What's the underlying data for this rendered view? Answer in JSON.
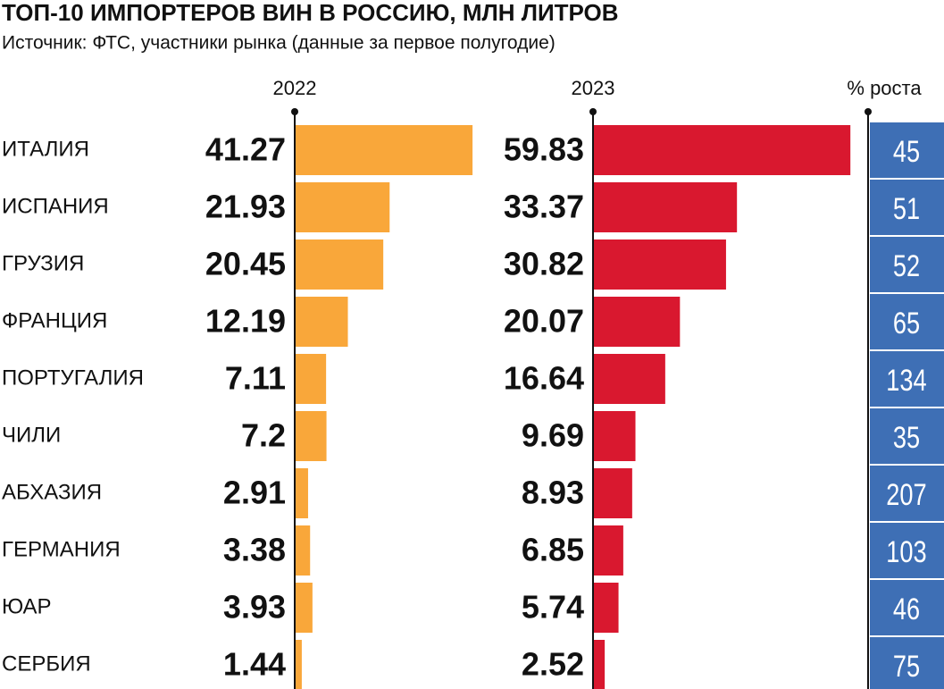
{
  "chart_data": {
    "type": "bar",
    "title": "ТОП-10 ИМПОРТЕРОВ ВИН В РОССИЮ, МЛН ЛИТРОВ",
    "subtitle": "Источник: ФТС, участники рынка (данные за первое полугодие)",
    "categories": [
      "ИТАЛИЯ",
      "ИСПАНИЯ",
      "ГРУЗИЯ",
      "ФРАНЦИЯ",
      "ПОРТУГАЛИЯ",
      "ЧИЛИ",
      "АБХАЗИЯ",
      "ГЕРМАНИЯ",
      "ЮАР",
      "СЕРБИЯ"
    ],
    "series": [
      {
        "name": "2022",
        "color": "#f9a73a",
        "values": [
          41.27,
          21.93,
          20.45,
          12.19,
          7.11,
          7.2,
          2.91,
          3.38,
          3.93,
          1.44
        ]
      },
      {
        "name": "2023",
        "color": "#d9182f",
        "values": [
          59.83,
          33.37,
          30.82,
          20.07,
          16.64,
          9.69,
          8.93,
          6.85,
          5.74,
          2.52
        ]
      }
    ],
    "growth": {
      "name": "% роста",
      "color": "#3e6fb5",
      "values": [
        45,
        51,
        52,
        65,
        134,
        35,
        207,
        103,
        46,
        75
      ]
    }
  }
}
